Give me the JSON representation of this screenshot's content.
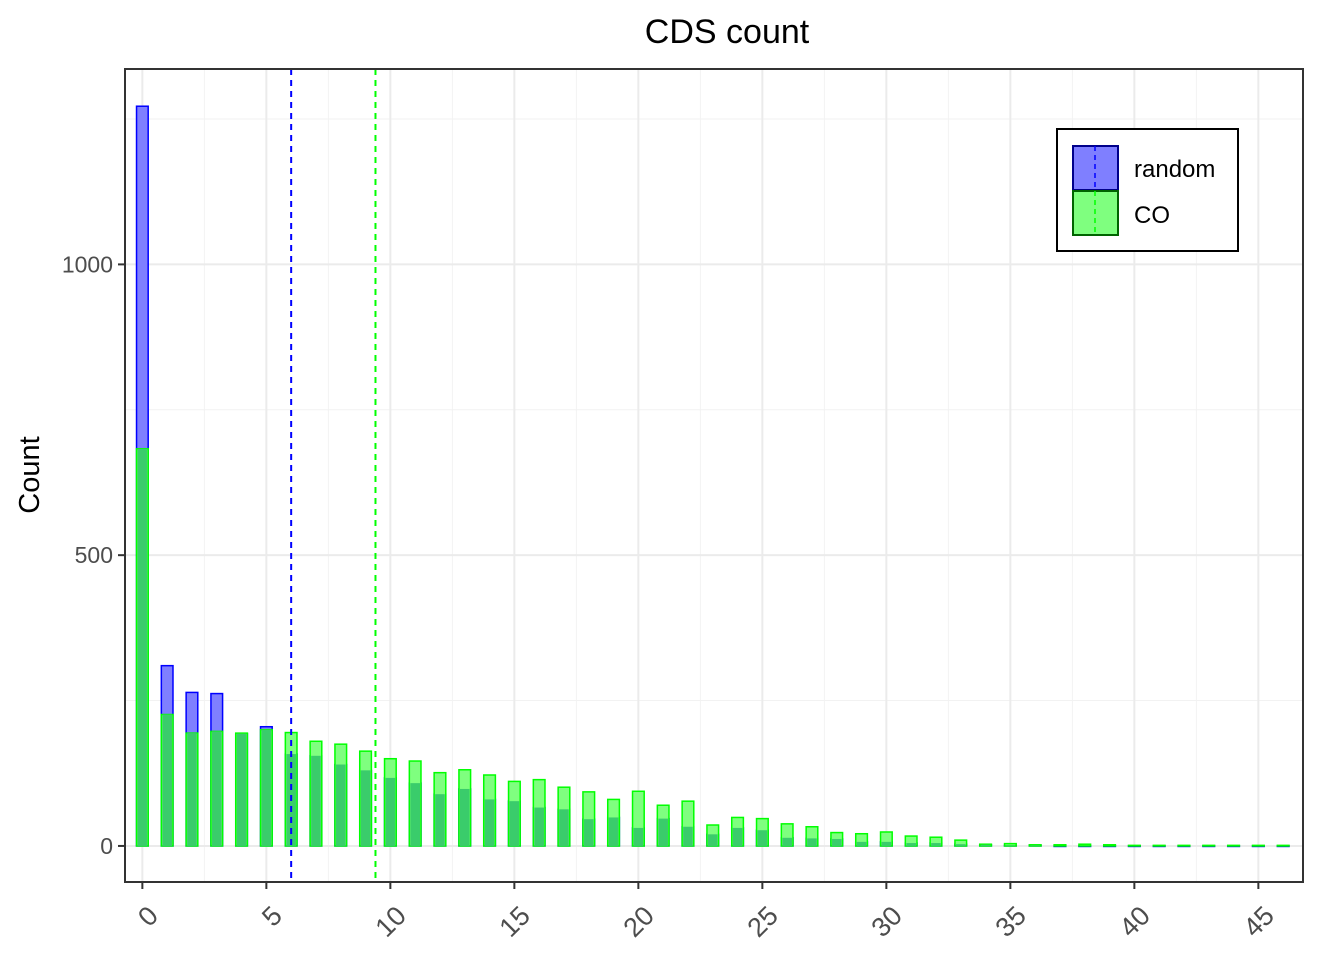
{
  "chart_data": {
    "type": "bar",
    "title": "CDS count",
    "xlabel": "",
    "ylabel": "Count",
    "xlim": [
      -0.7,
      46.8
    ],
    "ylim": [
      -62,
      1336
    ],
    "x_ticks": [
      0,
      5,
      10,
      15,
      20,
      25,
      30,
      35,
      40,
      45
    ],
    "y_ticks": [
      0,
      500,
      1000
    ],
    "x": [
      0,
      1,
      2,
      3,
      4,
      5,
      6,
      7,
      8,
      9,
      10,
      11,
      12,
      13,
      14,
      15,
      16,
      17,
      18,
      19,
      20,
      21,
      22,
      23,
      24,
      25,
      26,
      27,
      28,
      29,
      30,
      31,
      32,
      33,
      34,
      35,
      36,
      37,
      38,
      39,
      40,
      41,
      42,
      43,
      44,
      45,
      46
    ],
    "series": [
      {
        "name": "random",
        "fill": "#7f7fff",
        "stroke": "#0000ff",
        "mean": 6.0,
        "values": [
          1272,
          310,
          264,
          262,
          193,
          205,
          158,
          155,
          140,
          130,
          117,
          108,
          89,
          98,
          80,
          77,
          66,
          63,
          46,
          49,
          31,
          47,
          33,
          20,
          31,
          27,
          14,
          13,
          12,
          7,
          7,
          5,
          5,
          3,
          2,
          1,
          1,
          0,
          0,
          0,
          0,
          0,
          0,
          0,
          0,
          0,
          0
        ]
      },
      {
        "name": "CO",
        "fill": "#7fff7f",
        "stroke": "#00ff00",
        "mean": 9.4,
        "values": [
          683,
          226,
          194,
          197,
          194,
          200,
          195,
          180,
          175,
          163,
          150,
          146,
          126,
          131,
          122,
          111,
          114,
          101,
          93,
          80,
          94,
          70,
          77,
          36,
          49,
          47,
          38,
          33,
          23,
          21,
          24,
          17,
          15,
          10,
          3,
          4,
          2,
          2,
          3,
          2,
          1,
          1,
          1,
          1,
          1,
          1,
          1
        ]
      }
    ],
    "legend": {
      "position": "top-right",
      "entries": [
        "random",
        "CO"
      ]
    },
    "grid": true
  }
}
